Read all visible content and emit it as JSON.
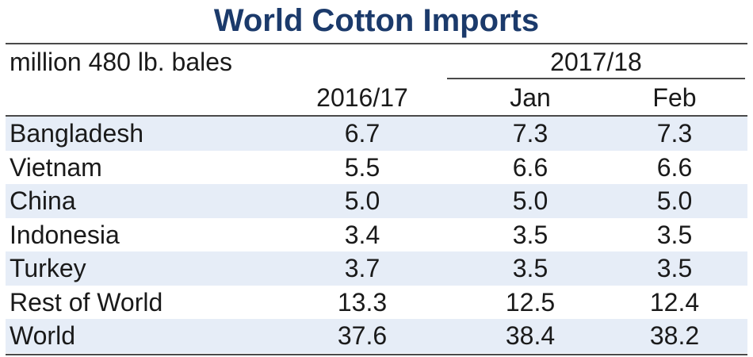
{
  "chart_data": {
    "type": "table",
    "title": "World Cotton Imports",
    "units": "million 480 lb. bales",
    "group_header": "2017/18",
    "columns": [
      "2016/17",
      "Jan",
      "Feb"
    ],
    "rows": [
      {
        "label": "Bangladesh",
        "values": [
          "6.7",
          "7.3",
          "7.3"
        ]
      },
      {
        "label": "Vietnam",
        "values": [
          "5.5",
          "6.6",
          "6.6"
        ]
      },
      {
        "label": "China",
        "values": [
          "5.0",
          "5.0",
          "5.0"
        ]
      },
      {
        "label": "Indonesia",
        "values": [
          "3.4",
          "3.5",
          "3.5"
        ]
      },
      {
        "label": "Turkey",
        "values": [
          "3.7",
          "3.5",
          "3.5"
        ]
      },
      {
        "label": "Rest of World",
        "values": [
          "13.3",
          "12.5",
          "12.4"
        ]
      },
      {
        "label": "World",
        "values": [
          "37.6",
          "38.4",
          "38.2"
        ]
      }
    ]
  },
  "colors": {
    "title": "#1b3a6b",
    "row_shade": "#e6edf7",
    "rule": "#4a4a4a"
  }
}
